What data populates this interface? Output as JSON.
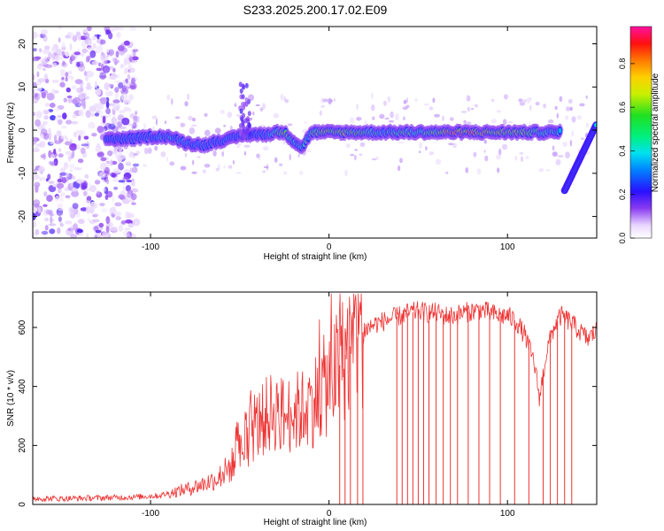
{
  "title": "S233.2025.200.17.02.E09",
  "colors": {
    "series": "#ee3333",
    "spectro_low": "#7a1fd6",
    "spectro_mid": "#00d6e6",
    "spectro_high": "#ff2020"
  },
  "chart_data": [
    {
      "type": "heatmap",
      "title": "S233.2025.200.17.02.E09",
      "xlabel": "Height of straight line (km)",
      "ylabel": "Frequency (Hz)",
      "xlim": [
        -166,
        150
      ],
      "ylim": [
        -25,
        24
      ],
      "x_ticks": [
        -100,
        0,
        100
      ],
      "y_ticks": [
        -20,
        -10,
        0,
        10,
        20
      ],
      "colorbar": {
        "label": "Normalized spectral amplitude",
        "range": [
          0,
          0.97
        ],
        "ticks": [
          "0.0",
          "0.2",
          "0.4",
          "0.6",
          "0.8"
        ],
        "colormap": "rainbow"
      },
      "ridge": {
        "x": [
          -125,
          -110,
          -100,
          -90,
          -80,
          -70,
          -62,
          -55,
          -48,
          -40,
          -35,
          -30,
          -25,
          -20,
          -15,
          -10,
          0,
          10,
          20,
          30,
          40,
          50,
          60,
          70,
          80,
          90,
          100,
          110,
          120,
          130
        ],
        "frequency": [
          -2,
          -2,
          -1.5,
          -1.5,
          -3,
          -3.5,
          -2.5,
          -2,
          -1,
          -1,
          -1,
          -0.5,
          -0.5,
          -2.5,
          -4,
          -0.5,
          -0.5,
          -0.5,
          -0.5,
          -0.5,
          -0.5,
          -0.5,
          -0.5,
          -0.5,
          -0.5,
          -0.5,
          -0.5,
          -0.5,
          -0.5,
          -0.5
        ],
        "amplitude": [
          0.3,
          0.35,
          0.4,
          0.45,
          0.4,
          0.4,
          0.35,
          0.4,
          0.3,
          0.35,
          0.4,
          0.6,
          0.7,
          0.45,
          0.45,
          0.55,
          0.75,
          0.7,
          0.55,
          0.5,
          0.6,
          0.6,
          0.65,
          0.95,
          0.9,
          0.7,
          0.75,
          0.65,
          0.55,
          0.45
        ]
      },
      "secondary_track": {
        "x": [
          132,
          150
        ],
        "frequency": [
          -14,
          1.5
        ],
        "amplitude": 0.4
      },
      "noise_region": {
        "x": [
          -166,
          -120
        ],
        "frequency": [
          -25,
          24
        ],
        "amplitude": 0.1
      }
    },
    {
      "type": "line",
      "xlabel": "Height of straight line (km)",
      "ylabel": "SNR (10 * v/v)",
      "xlim": [
        -166,
        150
      ],
      "ylim": [
        0,
        720
      ],
      "x_ticks": [
        -100,
        0,
        100
      ],
      "y_ticks": [
        0,
        200,
        400,
        600
      ],
      "grid": false,
      "series": [
        {
          "x": [
            -166,
            -150,
            -130,
            -110,
            -95,
            -85,
            -78,
            -70,
            -62,
            -55,
            -50,
            -45,
            -40,
            -35,
            -30,
            -25,
            -20,
            -15,
            -10,
            -5,
            0,
            5,
            10,
            15,
            20,
            25,
            30,
            35,
            40,
            45,
            50,
            55,
            60,
            65,
            70,
            75,
            80,
            85,
            90,
            95,
            100,
            105,
            110,
            115,
            118,
            122,
            126,
            130,
            135,
            140,
            145,
            150
          ],
          "values": [
            20,
            20,
            22,
            25,
            30,
            45,
            55,
            70,
            90,
            130,
            170,
            230,
            270,
            300,
            320,
            300,
            310,
            320,
            340,
            380,
            420,
            460,
            520,
            560,
            590,
            610,
            620,
            630,
            640,
            650,
            655,
            650,
            650,
            640,
            640,
            650,
            655,
            660,
            650,
            640,
            640,
            620,
            570,
            480,
            360,
            520,
            600,
            640,
            620,
            590,
            560,
            590
          ]
        }
      ],
      "dropouts_x": [
        6,
        9,
        12,
        16,
        19,
        38,
        41,
        44,
        47,
        50,
        53,
        56,
        60,
        64,
        68,
        72,
        78,
        84,
        90,
        96,
        104,
        112,
        120,
        124,
        128,
        132,
        136
      ]
    }
  ]
}
